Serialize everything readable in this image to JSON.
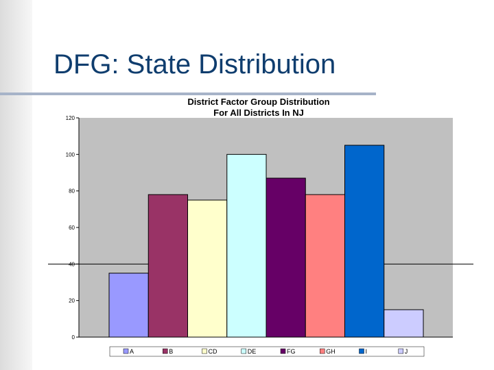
{
  "slide": {
    "title": "DFG: State Distribution"
  },
  "chart_data": {
    "type": "bar",
    "title_lines": [
      "District Factor Group Distribution",
      "For All Districts In NJ"
    ],
    "xlabel": "",
    "ylabel": "",
    "ylim": [
      0,
      120
    ],
    "yticks": [
      0,
      20,
      40,
      60,
      80,
      100,
      120
    ],
    "reference_line": 40,
    "grid": false,
    "legend_position": "bottom",
    "categories": [
      "A",
      "B",
      "CD",
      "DE",
      "FG",
      "GH",
      "I",
      "J"
    ],
    "values": [
      35,
      78,
      75,
      100,
      87,
      78,
      105,
      15
    ],
    "colors": [
      "#9999ff",
      "#993366",
      "#ffffcc",
      "#ccffff",
      "#660066",
      "#ff8080",
      "#0066cc",
      "#ccccff"
    ],
    "plot_background": "#c0c0c0"
  }
}
